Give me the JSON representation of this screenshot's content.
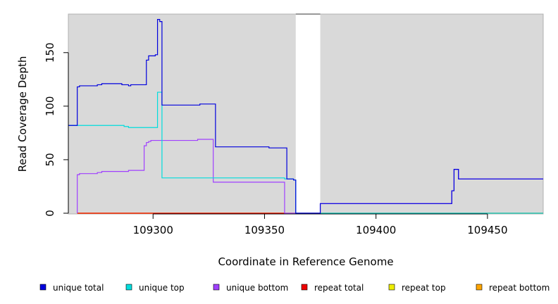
{
  "chart_data": {
    "type": "line",
    "xlabel": "Coordinate in Reference Genome",
    "ylabel": "Read Coverage Depth",
    "xlim": [
      109262,
      109475
    ],
    "ylim": [
      0,
      186
    ],
    "x_ticks": [
      109300,
      109350,
      109400,
      109450
    ],
    "y_ticks": [
      0,
      50,
      100,
      150
    ],
    "grid": false,
    "background": "#d9d9d9",
    "gap_region": [
      109364,
      109375
    ],
    "legend_position": "bottom",
    "series": [
      {
        "name": "unique total",
        "color": "#0000dd",
        "points": [
          [
            109262,
            82
          ],
          [
            109266,
            82
          ],
          [
            109266,
            118
          ],
          [
            109267,
            118
          ],
          [
            109267,
            119
          ],
          [
            109275,
            119
          ],
          [
            109275,
            120
          ],
          [
            109277,
            120
          ],
          [
            109277,
            121
          ],
          [
            109286,
            121
          ],
          [
            109286,
            120
          ],
          [
            109289,
            120
          ],
          [
            109289,
            119
          ],
          [
            109290,
            119
          ],
          [
            109290,
            120
          ],
          [
            109297,
            120
          ],
          [
            109297,
            143
          ],
          [
            109298,
            143
          ],
          [
            109298,
            147
          ],
          [
            109301,
            147
          ],
          [
            109301,
            148
          ],
          [
            109302,
            148
          ],
          [
            109302,
            181
          ],
          [
            109303,
            181
          ],
          [
            109303,
            179
          ],
          [
            109304,
            179
          ],
          [
            109304,
            101
          ],
          [
            109321,
            101
          ],
          [
            109321,
            102
          ],
          [
            109328,
            102
          ],
          [
            109328,
            62
          ],
          [
            109352,
            62
          ],
          [
            109352,
            61
          ],
          [
            109360,
            61
          ],
          [
            109360,
            32
          ],
          [
            109363,
            32
          ],
          [
            109363,
            31
          ],
          [
            109364,
            31
          ],
          [
            109364,
            0
          ],
          [
            109375,
            0
          ],
          [
            109375,
            9
          ],
          [
            109434,
            9
          ],
          [
            109434,
            21
          ],
          [
            109435,
            21
          ],
          [
            109435,
            41
          ],
          [
            109437,
            41
          ],
          [
            109437,
            32
          ],
          [
            109475,
            32
          ]
        ]
      },
      {
        "name": "unique top",
        "color": "#00dddd",
        "points": [
          [
            109262,
            82
          ],
          [
            109287,
            82
          ],
          [
            109287,
            81
          ],
          [
            109289,
            81
          ],
          [
            109289,
            80
          ],
          [
            109302,
            80
          ],
          [
            109302,
            113
          ],
          [
            109304,
            113
          ],
          [
            109304,
            33
          ],
          [
            109359,
            33
          ],
          [
            109359,
            32
          ],
          [
            109363,
            32
          ],
          [
            109363,
            31
          ],
          [
            109364,
            31
          ],
          [
            109364,
            0
          ],
          [
            109475,
            0
          ]
        ]
      },
      {
        "name": "unique bottom",
        "color": "#a040ff",
        "points": [
          [
            109266,
            0
          ],
          [
            109266,
            36
          ],
          [
            109267,
            36
          ],
          [
            109267,
            37
          ],
          [
            109275,
            37
          ],
          [
            109275,
            38
          ],
          [
            109277,
            38
          ],
          [
            109277,
            39
          ],
          [
            109289,
            39
          ],
          [
            109289,
            40
          ],
          [
            109296,
            40
          ],
          [
            109296,
            63
          ],
          [
            109297,
            63
          ],
          [
            109297,
            66
          ],
          [
            109298,
            66
          ],
          [
            109298,
            67
          ],
          [
            109299,
            67
          ],
          [
            109299,
            68
          ],
          [
            109320,
            68
          ],
          [
            109320,
            69
          ],
          [
            109327,
            69
          ],
          [
            109327,
            29
          ],
          [
            109359,
            29
          ],
          [
            109359,
            0
          ],
          [
            109364,
            0
          ],
          [
            109375,
            0
          ],
          [
            109375,
            9
          ],
          [
            109434,
            9
          ],
          [
            109434,
            21
          ],
          [
            109435,
            21
          ],
          [
            109435,
            41
          ],
          [
            109437,
            41
          ],
          [
            109437,
            32
          ],
          [
            109475,
            32
          ]
        ]
      },
      {
        "name": "repeat total",
        "color": "#ee0000",
        "points": [
          [
            109266,
            0
          ],
          [
            109475,
            0
          ]
        ]
      },
      {
        "name": "repeat top",
        "color": "#eeee00",
        "points": [
          [
            109266,
            0
          ],
          [
            109475,
            0
          ]
        ]
      },
      {
        "name": "repeat bottom",
        "color": "#ffa500",
        "points": [
          [
            109266,
            0
          ],
          [
            109359,
            0
          ]
        ]
      }
    ]
  }
}
